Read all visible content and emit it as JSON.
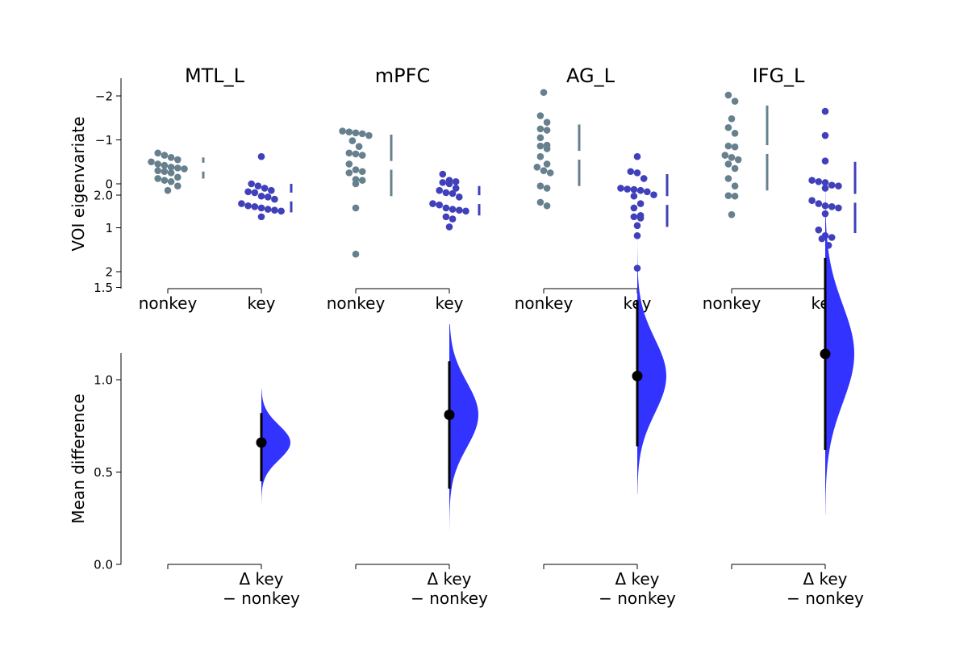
{
  "chart_data": {
    "type": "scatter",
    "colors": {
      "nonkey": "#67808e",
      "key": "#4040bb",
      "delta": "#3333ff",
      "estimate": "#000000"
    },
    "top_axis": {
      "ylabel": "VOI eigenvariate",
      "ylim": [
        -2.4,
        2.4
      ],
      "inverted": true,
      "yticks": [
        -2,
        -1,
        0,
        1,
        2
      ],
      "ytick_labels": [
        "−2",
        "−1",
        "0",
        "1",
        "2"
      ],
      "group_labels": [
        "nonkey",
        "key"
      ]
    },
    "bottom_axis": {
      "ylabel": "Mean difference",
      "ylim": [
        0,
        2.3
      ],
      "yticks": [
        0,
        0.5,
        1,
        1.5,
        2
      ],
      "ytick_labels": [
        "0.0",
        "0.5",
        "1.0",
        "1.5",
        "2.0"
      ],
      "delta_label_line1": "Δ key",
      "delta_label_line2": "− nonkey"
    },
    "regions": [
      {
        "name": "MTL_L",
        "nonkey": [
          -0.7,
          -0.65,
          -0.6,
          -0.55,
          -0.5,
          -0.45,
          -0.42,
          -0.38,
          -0.36,
          -0.34,
          -0.3,
          -0.28,
          -0.25,
          -0.15,
          -0.12,
          -0.08,
          -0.05,
          0.05,
          0.15
        ],
        "key": [
          -0.62,
          0.0,
          0.05,
          0.1,
          0.15,
          0.18,
          0.2,
          0.28,
          0.3,
          0.35,
          0.45,
          0.5,
          0.52,
          0.55,
          0.58,
          0.6,
          0.62,
          0.75
        ],
        "nonkey_mean": -0.38,
        "nonkey_sd_bar": [
          -0.6,
          -0.12
        ],
        "key_mean": 0.3,
        "key_sd_bar": [
          0.0,
          0.65
        ],
        "mean_diff": 0.66,
        "ci": [
          0.45,
          0.82
        ],
        "kde_range": [
          0.33,
          0.95
        ]
      },
      {
        "name": "mPFC",
        "nonkey": [
          -1.2,
          -1.18,
          -1.16,
          -1.14,
          -1.1,
          -0.98,
          -0.85,
          -0.7,
          -0.68,
          -0.65,
          -0.45,
          -0.32,
          -0.28,
          -0.25,
          -0.1,
          -0.08,
          0.0,
          0.55,
          1.6
        ],
        "key": [
          -0.22,
          -0.08,
          -0.05,
          -0.03,
          0.0,
          0.1,
          0.15,
          0.2,
          0.22,
          0.3,
          0.45,
          0.48,
          0.55,
          0.58,
          0.6,
          0.62,
          0.75,
          0.8,
          0.98
        ],
        "nonkey_mean": -0.42,
        "nonkey_sd_bar": [
          -1.12,
          0.28
        ],
        "key_mean": 0.36,
        "key_sd_bar": [
          0.05,
          0.72
        ],
        "mean_diff": 0.81,
        "ci": [
          0.41,
          1.1
        ],
        "kde_range": [
          0.18,
          1.3
        ]
      },
      {
        "name": "AG_L",
        "nonkey": [
          -2.08,
          -1.55,
          -1.4,
          -1.25,
          -1.22,
          -1.05,
          -0.88,
          -0.86,
          -0.8,
          -0.62,
          -0.45,
          -0.38,
          -0.3,
          -0.25,
          0.05,
          0.1,
          0.42,
          0.5
        ],
        "key": [
          -0.62,
          -0.28,
          -0.25,
          -0.12,
          0.1,
          0.12,
          0.13,
          0.15,
          0.18,
          0.25,
          0.28,
          0.45,
          0.55,
          0.72,
          0.75,
          0.78,
          0.95,
          1.18,
          1.92
        ],
        "nonkey_mean": -0.65,
        "nonkey_sd_bar": [
          -1.35,
          0.05
        ],
        "key_mean": 0.38,
        "key_sd_bar": [
          -0.22,
          0.98
        ],
        "mean_diff": 1.02,
        "ci": [
          0.64,
          1.43
        ],
        "kde_range": [
          0.38,
          1.8
        ]
      },
      {
        "name": "IFG_L",
        "nonkey": [
          -2.02,
          -1.88,
          -1.48,
          -1.28,
          -1.15,
          -0.86,
          -0.84,
          -0.65,
          -0.6,
          -0.55,
          -0.45,
          -0.35,
          -0.12,
          0.05,
          0.27,
          0.28,
          0.7
        ],
        "key": [
          -1.65,
          -1.1,
          -0.52,
          -0.08,
          -0.05,
          -0.03,
          0.03,
          0.05,
          0.1,
          0.38,
          0.45,
          0.5,
          0.52,
          0.55,
          0.68,
          1.05,
          1.18,
          1.22,
          1.25,
          1.4
        ],
        "nonkey_mean": -0.78,
        "nonkey_sd_bar": [
          -1.78,
          0.15
        ],
        "key_mean": 0.33,
        "key_sd_bar": [
          -0.5,
          1.12
        ],
        "mean_diff": 1.14,
        "ci": [
          0.62,
          1.66
        ],
        "kde_range": [
          0.27,
          2.15
        ]
      }
    ]
  }
}
